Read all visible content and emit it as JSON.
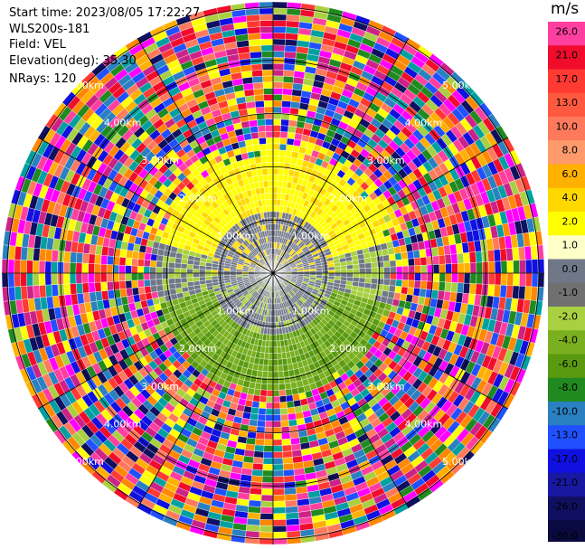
{
  "header": {
    "start_time": "Start time: 2023/08/05 17:22:27",
    "site": "WLS200s-181",
    "field": "Field: VEL",
    "elevation": "Elevation(deg): 35.30",
    "nrays": "NRays: 120"
  },
  "colorbar": {
    "unit": "m/s",
    "labels": [
      "26.0",
      "21.0",
      "17.0",
      "13.0",
      "10.0",
      "8.0",
      "6.0",
      "4.0",
      "2.0",
      "1.0",
      "0.0",
      "-1.0",
      "-2.0",
      "-4.0",
      "-6.0",
      "-8.0",
      "-10.0",
      "-13.0",
      "-17.0",
      "-21.0",
      "-26.0",
      "-30.0"
    ],
    "colors": [
      "#ff3fa0",
      "#f10c2c",
      "#ff3a32",
      "#ff5a40",
      "#ff7a5c",
      "#ff9a6c",
      "#ffb000",
      "#ffd800",
      "#ffff00",
      "#ffffc8",
      "#707888",
      "#707070",
      "#a8d040",
      "#7ab020",
      "#5a9a10",
      "#208a20",
      "#2a80c0",
      "#2050ff",
      "#1010e0",
      "#1818a0",
      "#101060",
      "#0a0a40"
    ]
  },
  "chart_data": {
    "type": "heatmap",
    "projection": "polar PPI",
    "field": "VEL",
    "units": "m/s",
    "n_rays": 120,
    "range_ring_labels": [
      "1.00km",
      "2.00km",
      "3.00km",
      "4.00km",
      "5.00km"
    ],
    "ring_label_texts": {
      "nw": [
        "1.00km",
        "2.00km",
        "3.00km",
        "4.00km",
        "5.00km"
      ],
      "ne": [
        "1.00km",
        "2.00km",
        "3.00km",
        "4.00km",
        "5.00km"
      ],
      "sw": [
        "1.00km",
        "2.00km",
        "3.00km",
        "4.00km",
        "5.00km"
      ],
      "se": [
        "1.00km",
        "2.00km",
        "3.00km",
        "4.00km",
        "5.00km"
      ]
    },
    "max_range_km": 5.1,
    "valid_range_km": 2.35,
    "pattern": "receding (positive, yellow) to the north, approaching (negative, green) to the south, near-zero core within ~1.2 km, noise beyond ~2.4 km"
  }
}
